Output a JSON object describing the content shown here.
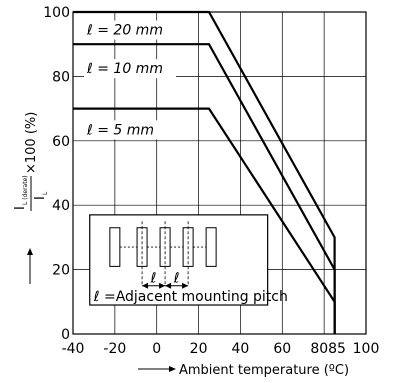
{
  "chart_data": {
    "type": "line",
    "xlabel": "Ambient temperature (ºC)",
    "ylabel_numerator": "I",
    "ylabel_numerator_sub": "L (derate)",
    "ylabel_denominator": "I",
    "ylabel_denominator_sub": "L",
    "ylabel_suffix": "×100 (%)",
    "xlim": [
      -40,
      100
    ],
    "ylim": [
      0,
      100
    ],
    "x_ticks": [
      -40,
      -20,
      0,
      20,
      40,
      60,
      80,
      85,
      100
    ],
    "x_tick_labels": [
      "-40",
      "-20",
      "0",
      "20",
      "40",
      "60",
      "80",
      "85",
      "100"
    ],
    "y_ticks": [
      0,
      20,
      40,
      60,
      80,
      100
    ],
    "y_tick_labels": [
      "0",
      "20",
      "40",
      "60",
      "80",
      "100"
    ],
    "grid": true,
    "series": [
      {
        "name": "ℓ = 20 mm",
        "x": [
          -40,
          25,
          85,
          85
        ],
        "y": [
          100,
          100,
          30,
          0
        ]
      },
      {
        "name": "ℓ = 10 mm",
        "x": [
          -40,
          25,
          85,
          85
        ],
        "y": [
          90,
          90,
          20,
          0
        ]
      },
      {
        "name": "ℓ = 5 mm",
        "x": [
          -40,
          25,
          85,
          85
        ],
        "y": [
          70,
          70,
          10,
          0
        ]
      }
    ],
    "inset": {
      "pitch_symbol": "ℓ",
      "caption": "ℓ =Adjacent mounting pitch"
    }
  }
}
